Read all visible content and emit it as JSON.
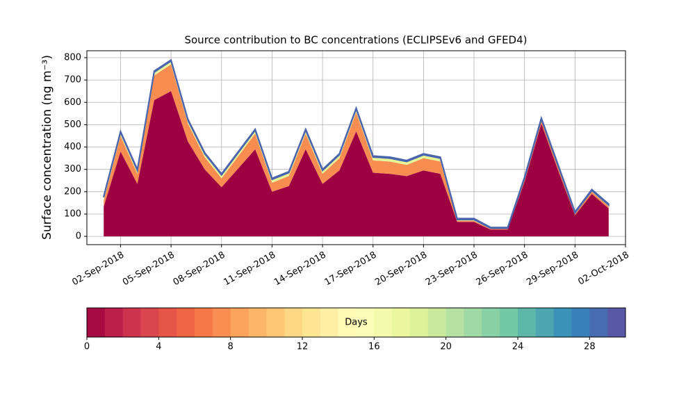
{
  "chart_data": {
    "type": "stacked_area",
    "title": "Source contribution to BC concentrations (ECLIPSEv6 and GFED4)",
    "y_label": "Surface concentration (ng m⁻³)",
    "x": [
      "2018-09-01",
      "2018-09-02",
      "2018-09-03",
      "2018-09-04",
      "2018-09-05",
      "2018-09-06",
      "2018-09-07",
      "2018-09-08",
      "2018-09-09",
      "2018-09-10",
      "2018-09-11",
      "2018-09-12",
      "2018-09-13",
      "2018-09-14",
      "2018-09-15",
      "2018-09-16",
      "2018-09-17",
      "2018-09-18",
      "2018-09-19",
      "2018-09-20",
      "2018-09-21",
      "2018-09-22",
      "2018-09-23",
      "2018-09-24",
      "2018-09-25",
      "2018-09-26",
      "2018-09-27",
      "2018-09-28",
      "2018-09-29",
      "2018-09-30",
      "2018-10-01"
    ],
    "series": [
      {
        "color": "#9e0142",
        "values": [
          133,
          380,
          235,
          610,
          650,
          425,
          300,
          220,
          305,
          390,
          200,
          225,
          390,
          235,
          295,
          470,
          285,
          280,
          270,
          295,
          280,
          65,
          65,
          30,
          30,
          245,
          505,
          295,
          95,
          190,
          125
        ]
      },
      {
        "color": "#f88d52",
        "values": [
          27,
          70,
          45,
          110,
          120,
          80,
          55,
          40,
          55,
          70,
          40,
          45,
          70,
          45,
          55,
          85,
          55,
          55,
          50,
          55,
          55,
          5,
          5,
          3,
          3,
          10,
          15,
          15,
          5,
          10,
          10
        ]
      },
      {
        "color": "#e6f598",
        "values": [
          15,
          15,
          15,
          15,
          15,
          15,
          15,
          15,
          15,
          15,
          15,
          15,
          15,
          15,
          15,
          15,
          15,
          15,
          15,
          15,
          15,
          5,
          5,
          3,
          3,
          5,
          5,
          5,
          5,
          5,
          5
        ]
      },
      {
        "color": "#4a64ad",
        "values": [
          5,
          5,
          5,
          5,
          5,
          5,
          5,
          5,
          5,
          5,
          5,
          5,
          5,
          5,
          5,
          5,
          5,
          5,
          5,
          5,
          5,
          5,
          5,
          4,
          4,
          5,
          5,
          5,
          5,
          5,
          5
        ]
      }
    ],
    "xlim": [
      "2018-08-31",
      "2018-10-02"
    ],
    "xticks": [
      {
        "value": "2018-09-02",
        "label": "02-Sep-2018"
      },
      {
        "value": "2018-09-05",
        "label": "05-Sep-2018"
      },
      {
        "value": "2018-09-08",
        "label": "08-Sep-2018"
      },
      {
        "value": "2018-09-11",
        "label": "11-Sep-2018"
      },
      {
        "value": "2018-09-14",
        "label": "14-Sep-2018"
      },
      {
        "value": "2018-09-17",
        "label": "17-Sep-2018"
      },
      {
        "value": "2018-09-20",
        "label": "20-Sep-2018"
      },
      {
        "value": "2018-09-23",
        "label": "23-Sep-2018"
      },
      {
        "value": "2018-09-26",
        "label": "26-Sep-2018"
      },
      {
        "value": "2018-09-29",
        "label": "29-Sep-2018"
      },
      {
        "value": "2018-10-02",
        "label": "02-Oct-2018"
      }
    ],
    "ylim": [
      -37,
      831
    ],
    "yticks": [
      0,
      100,
      200,
      300,
      400,
      500,
      600,
      700,
      800
    ],
    "grid": true,
    "colorbar": {
      "label": "Days",
      "lim": [
        0,
        30
      ],
      "ticks": [
        0,
        4,
        8,
        12,
        16,
        20,
        24,
        28
      ],
      "colors": [
        "#9e0142",
        "#d53e4f",
        "#f46d43",
        "#fdae61",
        "#fee08b",
        "#ffffbf",
        "#e6f598",
        "#abdda4",
        "#66c2a5",
        "#3288bd",
        "#5e4fa2"
      ]
    }
  }
}
